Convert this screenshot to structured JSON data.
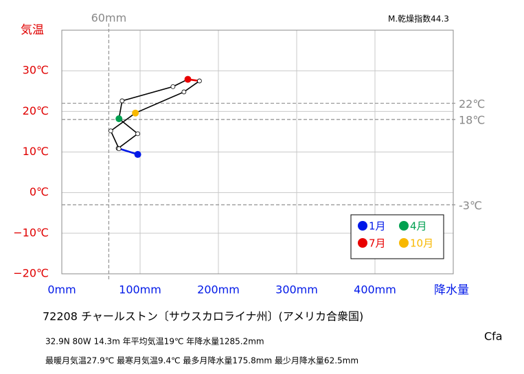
{
  "chart_data": {
    "type": "line",
    "index_label": "M.乾燥指数44.3",
    "station": "72208 チャールストン〔サウスカロライナ州〕(アメリカ合衆国)",
    "info_line_1": "32.9N 80W 14.3m 年平均気温19℃ 年降水量1285.2mm",
    "info_line_2": "最暖月気温27.9℃ 最寒月気温9.4℃ 最多月降水量175.8mm 最少月降水量62.5mm",
    "climate_class": "Cfa",
    "y_label": "気温",
    "x_label": "降水量",
    "x": [
      97,
      72,
      97,
      73,
      77,
      142,
      161,
      175.8,
      156,
      94,
      62.5,
      73
    ],
    "series": [
      {
        "values": [
          9.4,
          10.9,
          14.5,
          18.2,
          22.6,
          26.1,
          27.9,
          27.5,
          24.8,
          19.6,
          15.2,
          10.8
        ],
        "color": "#000000",
        "point_colors": [
          "#0018e8",
          "#ffffff",
          "#ffffff",
          "#00a050",
          "#ffffff",
          "#ffffff",
          "#e80000",
          "#ffffff",
          "#ffffff",
          "#f8b800",
          "#ffffff",
          "#ffffff"
        ],
        "segment_colors": [
          "#0018e8",
          "#000000",
          "#000000",
          "#000000",
          "#000000",
          "#000000",
          "#e80000",
          "#000000",
          "#000000",
          "#000000",
          "#000000",
          "#000000"
        ]
      }
    ],
    "legend": [
      {
        "label": "1月",
        "color": "#0018e8"
      },
      {
        "label": "4月",
        "color": "#00a050"
      },
      {
        "label": "7月",
        "color": "#e80000"
      },
      {
        "label": "10月",
        "color": "#f8b800"
      }
    ],
    "xlim": [
      0,
      500
    ],
    "ylim": [
      -20,
      40
    ],
    "xticks": [
      {
        "value": 0,
        "label": "0mm"
      },
      {
        "value": 100,
        "label": "100mm"
      },
      {
        "value": 200,
        "label": "200mm"
      },
      {
        "value": 300,
        "label": "300mm"
      },
      {
        "value": 400,
        "label": "400mm"
      }
    ],
    "yticks": [
      {
        "value": -20,
        "label": "−20℃"
      },
      {
        "value": -10,
        "label": "−10℃"
      },
      {
        "value": 0,
        "label": "0℃"
      },
      {
        "value": 10,
        "label": "10℃"
      },
      {
        "value": 20,
        "label": "20℃"
      },
      {
        "value": 30,
        "label": "30℃"
      }
    ],
    "reference_x": [
      {
        "value": 60,
        "label": "60mm"
      }
    ],
    "reference_y": [
      {
        "value": 22,
        "label": "22℃"
      },
      {
        "value": 18,
        "label": "18℃"
      },
      {
        "value": -3,
        "label": "-3℃"
      }
    ],
    "grid": true
  }
}
